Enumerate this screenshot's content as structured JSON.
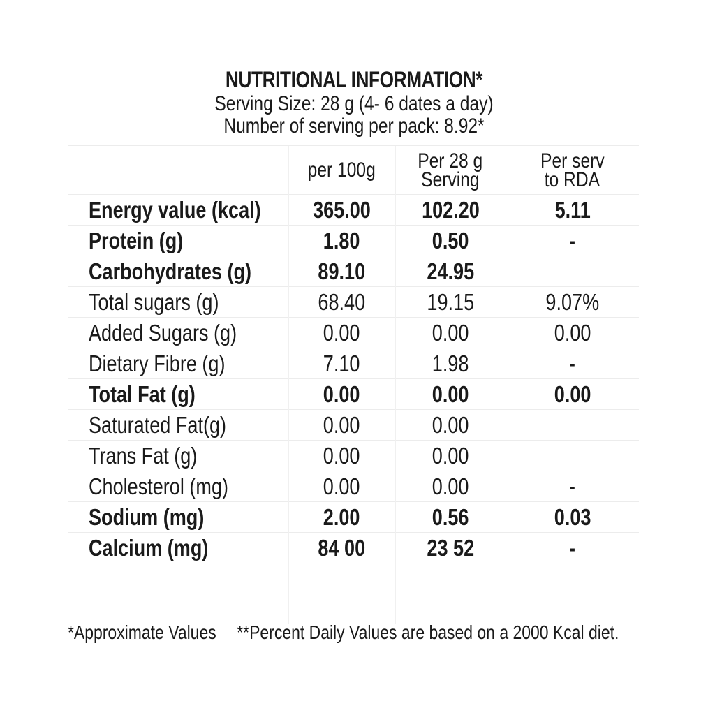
{
  "header": {
    "title": "NUTRITIONAL INFORMATION*",
    "serving_size": "Serving Size: 28 g (4- 6 dates a day)",
    "servings_per_pack": "Number of serving per pack: 8.92*"
  },
  "table": {
    "columns": [
      {
        "line1": "",
        "line2": ""
      },
      {
        "line1": "per 100g",
        "line2": ""
      },
      {
        "line1": "Per 28 g",
        "line2": "Serving"
      },
      {
        "line1": "Per serv",
        "line2": "to RDA"
      }
    ],
    "rows": [
      {
        "name": "Energy value (kcal)",
        "per100": "365.00",
        "per28": "102.20",
        "rda": "5.11",
        "bold": true
      },
      {
        "name": "Protein (g)",
        "per100": "1.80",
        "per28": "0.50",
        "rda": "-",
        "bold": true
      },
      {
        "name": "Carbohydrates (g)",
        "per100": "89.10",
        "per28": "24.95",
        "rda": "",
        "bold": true
      },
      {
        "name": "Total sugars (g)",
        "per100": "68.40",
        "per28": "19.15",
        "rda": "9.07%",
        "bold": false
      },
      {
        "name": "Added Sugars (g)",
        "per100": "0.00",
        "per28": "0.00",
        "rda": "0.00",
        "bold": false
      },
      {
        "name": "Dietary Fibre (g)",
        "per100": "7.10",
        "per28": "1.98",
        "rda": "-",
        "bold": false
      },
      {
        "name": "Total Fat (g)",
        "per100": "0.00",
        "per28": "0.00",
        "rda": "0.00",
        "bold": true
      },
      {
        "name": "Saturated Fat(g)",
        "per100": "0.00",
        "per28": "0.00",
        "rda": "",
        "bold": false
      },
      {
        "name": "Trans Fat (g)",
        "per100": "0.00",
        "per28": "0.00",
        "rda": "",
        "bold": false
      },
      {
        "name": "Cholesterol (mg)",
        "per100": "0.00",
        "per28": "0.00",
        "rda": "-",
        "bold": false
      },
      {
        "name": "Sodium (mg)",
        "per100": "2.00",
        "per28": "0.56",
        "rda": "0.03",
        "bold": true
      },
      {
        "name": "Calcium (mg)",
        "per100": "84 00",
        "per28": "23 52",
        "rda": "-",
        "bold": true
      }
    ]
  },
  "footer": {
    "approx_note": "*Approximate Values",
    "daily_note": "**Percent Daily Values are based on a 2000 Kcal diet."
  }
}
